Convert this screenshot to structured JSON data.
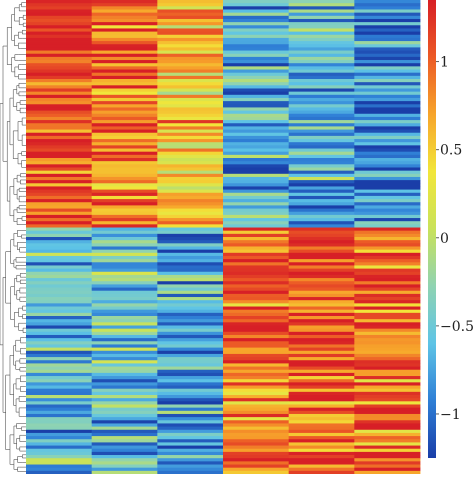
{
  "chart_data": {
    "type": "heatmap",
    "title": "",
    "xlabel": "",
    "ylabel": "",
    "columns": 6,
    "row_clusters": [
      {
        "name": "",
        "column_means": [
          1.1,
          1.0,
          0.5,
          -0.7,
          -0.65,
          -0.85
        ]
      },
      {
        "name": "",
        "column_means": [
          -0.65,
          -0.55,
          -0.8,
          0.9,
          1.0,
          0.95
        ]
      }
    ],
    "cluster_split_fraction": 0.48,
    "dendrogram": "left",
    "value_range": [
      -1.25,
      1.35
    ],
    "colorbar": {
      "ticks": [
        {
          "value": 1,
          "label": "1"
        },
        {
          "value": 0.5,
          "label": "0.5"
        },
        {
          "value": 0,
          "label": "0"
        },
        {
          "value": -0.5,
          "label": "−0.5"
        },
        {
          "value": -1,
          "label": "−1"
        }
      ],
      "colors": [
        "#1a3ea8",
        "#2f7fd6",
        "#5ec4e6",
        "#8fd3b2",
        "#c9e25a",
        "#f2e63a",
        "#f7a52b",
        "#ec5a26",
        "#d71f26"
      ]
    }
  }
}
